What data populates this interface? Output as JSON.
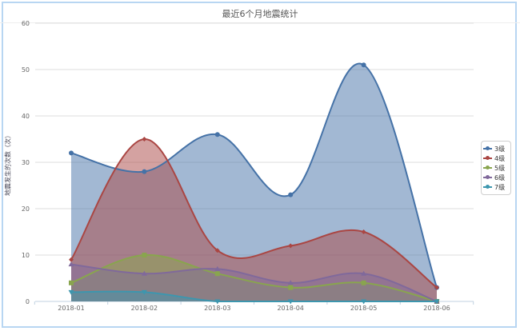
{
  "chart_data": {
    "type": "area",
    "title": "最近6个月地震统计",
    "xlabel": "",
    "ylabel": "地震发生的次数（次）",
    "ylim": [
      0,
      60
    ],
    "yticks": [
      0,
      10,
      20,
      30,
      40,
      50,
      60
    ],
    "grid": true,
    "legend_position": "right",
    "categories": [
      "2018-01",
      "2018-02",
      "2018-03",
      "2018-04",
      "2018-05",
      "2018-06"
    ],
    "series": [
      {
        "name": "3级",
        "color": "#4572a7",
        "marker": "circle",
        "values": [
          32,
          28,
          36,
          23,
          51,
          3
        ]
      },
      {
        "name": "4级",
        "color": "#aa4643",
        "marker": "diamond",
        "values": [
          9,
          35,
          11,
          12,
          15,
          3
        ]
      },
      {
        "name": "5级",
        "color": "#89a54e",
        "marker": "square",
        "values": [
          4,
          10,
          6,
          3,
          4,
          0
        ]
      },
      {
        "name": "6级",
        "color": "#80699b",
        "marker": "triangle",
        "values": [
          8,
          6,
          7,
          4,
          6,
          0
        ]
      },
      {
        "name": "7级",
        "color": "#3d96ae",
        "marker": "triangle-down",
        "values": [
          2,
          2,
          0,
          0,
          0,
          0
        ]
      }
    ]
  }
}
